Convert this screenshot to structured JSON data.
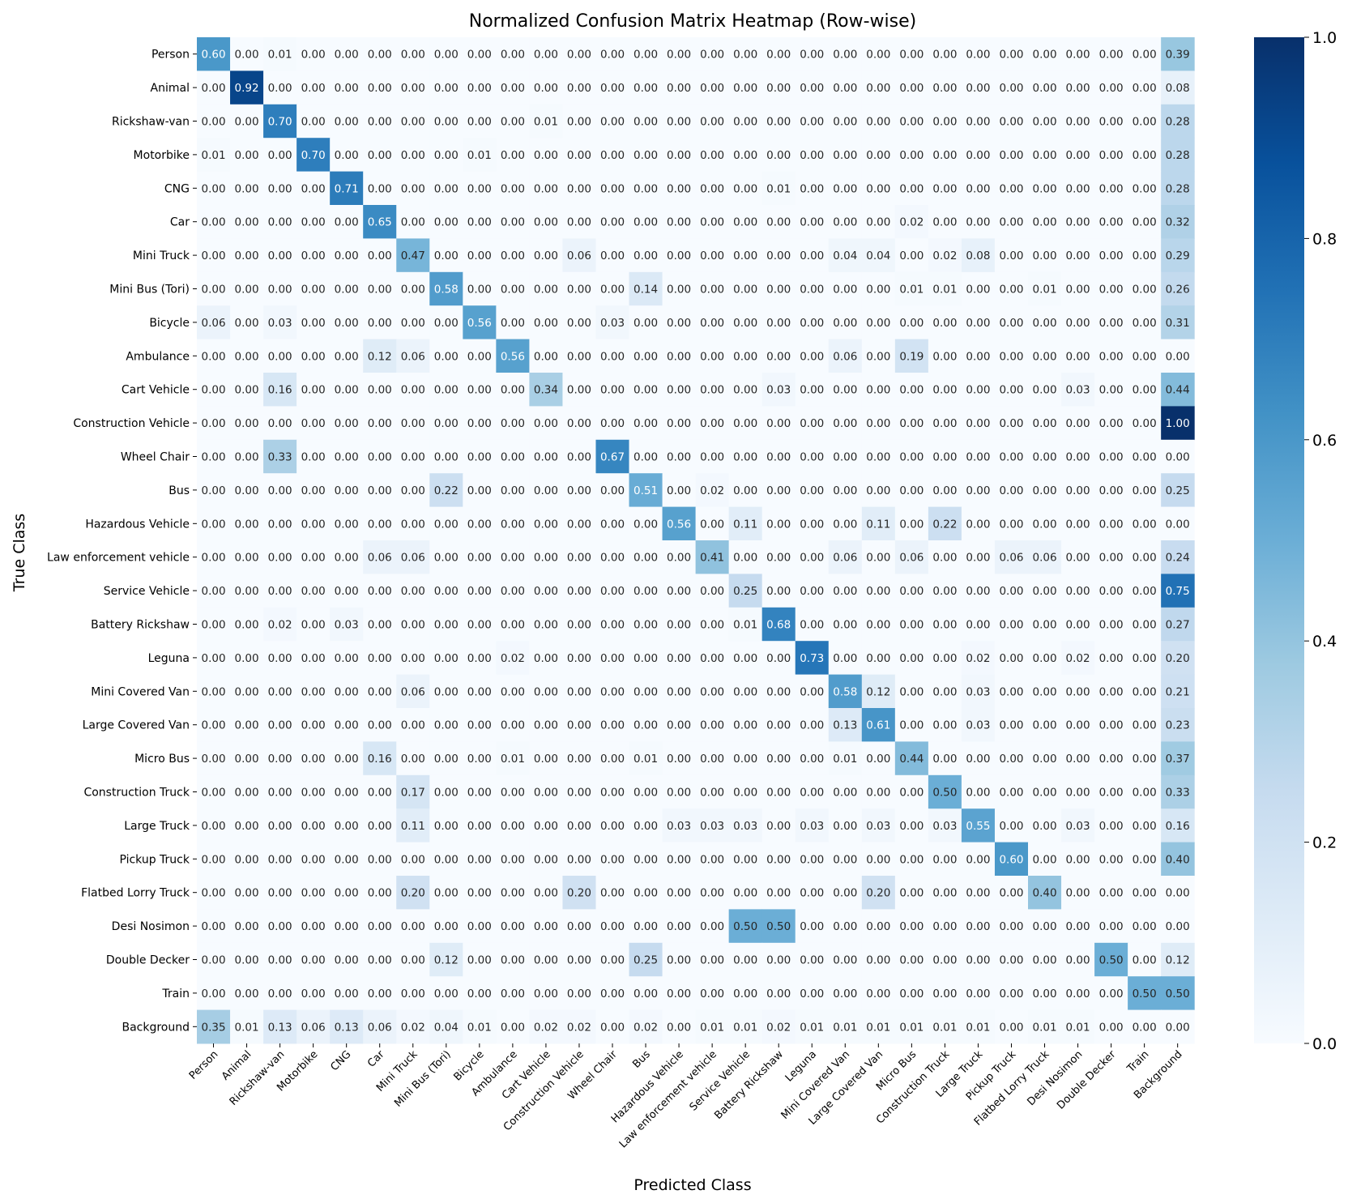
{
  "chart_data": {
    "type": "heatmap",
    "title": "Normalized Confusion Matrix Heatmap (Row-wise)",
    "xlabel": "Predicted Class",
    "ylabel": "True Class",
    "classes": [
      "Person",
      "Animal",
      "Rickshaw-van",
      "Motorbike",
      "CNG",
      "Car",
      "Mini Truck",
      "Mini Bus (Tori)",
      "Bicycle",
      "Ambulance",
      "Cart Vehicle",
      "Construction Vehicle",
      "Wheel Chair",
      "Bus",
      "Hazardous Vehicle",
      "Law enforcement vehicle",
      "Service Vehicle",
      "Battery Rickshaw",
      "Leguna",
      "Mini Covered Van",
      "Large Covered Van",
      "Micro Bus",
      "Construction Truck",
      "Large Truck",
      "Pickup Truck",
      "Flatbed Lorry Truck",
      "Desi Nosimon",
      "Double Decker",
      "Train",
      "Background"
    ],
    "colormap": "Blues",
    "color_range": [
      0,
      1
    ],
    "colorbar_ticks": [
      "0.0",
      "0.2",
      "0.4",
      "0.6",
      "0.8",
      "1.0"
    ],
    "colors": {
      "low": "#f7fbff",
      "high": "#08306b"
    },
    "matrix": [
      [
        0.6,
        0,
        0.01,
        0,
        0,
        0,
        0,
        0,
        0,
        0,
        0,
        0,
        0,
        0,
        0,
        0,
        0,
        0,
        0,
        0,
        0,
        0,
        0,
        0,
        0,
        0,
        0,
        0,
        0,
        0.39
      ],
      [
        0,
        0.92,
        0,
        0,
        0,
        0,
        0,
        0,
        0,
        0,
        0,
        0,
        0,
        0,
        0,
        0,
        0,
        0,
        0,
        0,
        0,
        0,
        0,
        0,
        0,
        0,
        0,
        0,
        0,
        0.08
      ],
      [
        0,
        0,
        0.7,
        0,
        0,
        0,
        0,
        0,
        0,
        0,
        0.01,
        0,
        0,
        0,
        0,
        0,
        0,
        0,
        0,
        0,
        0,
        0,
        0,
        0,
        0,
        0,
        0,
        0,
        0,
        0.28
      ],
      [
        0.01,
        0,
        0,
        0.7,
        0,
        0,
        0,
        0,
        0.01,
        0,
        0,
        0,
        0,
        0,
        0,
        0,
        0,
        0,
        0,
        0,
        0,
        0,
        0,
        0,
        0,
        0,
        0,
        0,
        0,
        0.28
      ],
      [
        0,
        0,
        0,
        0,
        0.71,
        0,
        0,
        0,
        0,
        0,
        0,
        0,
        0,
        0,
        0,
        0,
        0,
        0.01,
        0,
        0,
        0,
        0,
        0,
        0,
        0,
        0,
        0,
        0,
        0,
        0.28
      ],
      [
        0,
        0,
        0,
        0,
        0,
        0.65,
        0,
        0,
        0,
        0,
        0,
        0,
        0,
        0,
        0,
        0,
        0,
        0,
        0,
        0,
        0,
        0.02,
        0,
        0,
        0,
        0,
        0,
        0,
        0,
        0.32
      ],
      [
        0,
        0,
        0,
        0,
        0,
        0,
        0.47,
        0,
        0,
        0,
        0,
        0.06,
        0,
        0,
        0,
        0,
        0,
        0,
        0,
        0.04,
        0.04,
        0,
        0.02,
        0.08,
        0,
        0,
        0,
        0,
        0,
        0.29
      ],
      [
        0,
        0,
        0,
        0,
        0,
        0,
        0,
        0.58,
        0,
        0,
        0,
        0,
        0,
        0.14,
        0,
        0,
        0,
        0,
        0,
        0,
        0,
        0.01,
        0.01,
        0,
        0,
        0.01,
        0,
        0,
        0,
        0.26
      ],
      [
        0.06,
        0,
        0.03,
        0,
        0,
        0,
        0,
        0,
        0.56,
        0,
        0,
        0,
        0.03,
        0,
        0,
        0,
        0,
        0,
        0,
        0,
        0,
        0,
        0,
        0,
        0,
        0,
        0,
        0,
        0,
        0.31
      ],
      [
        0,
        0,
        0,
        0,
        0,
        0.12,
        0.06,
        0,
        0,
        0.56,
        0,
        0,
        0,
        0,
        0,
        0,
        0,
        0,
        0,
        0.06,
        0,
        0.19,
        0,
        0,
        0,
        0,
        0,
        0,
        0,
        0
      ],
      [
        0,
        0,
        0.16,
        0,
        0,
        0,
        0,
        0,
        0,
        0,
        0.34,
        0,
        0,
        0,
        0,
        0,
        0,
        0.03,
        0,
        0,
        0,
        0,
        0,
        0,
        0,
        0,
        0.03,
        0,
        0,
        0.44
      ],
      [
        0,
        0,
        0,
        0,
        0,
        0,
        0,
        0,
        0,
        0,
        0,
        0,
        0,
        0,
        0,
        0,
        0,
        0,
        0,
        0,
        0,
        0,
        0,
        0,
        0,
        0,
        0,
        0,
        0,
        1.0
      ],
      [
        0,
        0,
        0.33,
        0,
        0,
        0,
        0,
        0,
        0,
        0,
        0,
        0,
        0.67,
        0,
        0,
        0,
        0,
        0,
        0,
        0,
        0,
        0,
        0,
        0,
        0,
        0,
        0,
        0,
        0,
        0
      ],
      [
        0,
        0,
        0,
        0,
        0,
        0,
        0,
        0.22,
        0,
        0,
        0,
        0,
        0,
        0.51,
        0,
        0.02,
        0,
        0,
        0,
        0,
        0,
        0,
        0,
        0,
        0,
        0,
        0,
        0,
        0,
        0.25
      ],
      [
        0,
        0,
        0,
        0,
        0,
        0,
        0,
        0,
        0,
        0,
        0,
        0,
        0,
        0,
        0.56,
        0,
        0.11,
        0,
        0,
        0,
        0.11,
        0,
        0.22,
        0,
        0,
        0,
        0,
        0,
        0,
        0
      ],
      [
        0,
        0,
        0,
        0,
        0,
        0.06,
        0.06,
        0,
        0,
        0,
        0,
        0,
        0,
        0,
        0,
        0.41,
        0,
        0,
        0,
        0.06,
        0,
        0.06,
        0,
        0,
        0.06,
        0.06,
        0,
        0,
        0,
        0.24
      ],
      [
        0,
        0,
        0,
        0,
        0,
        0,
        0,
        0,
        0,
        0,
        0,
        0,
        0,
        0,
        0,
        0,
        0.25,
        0,
        0,
        0,
        0,
        0,
        0,
        0,
        0,
        0,
        0,
        0,
        0,
        0.75
      ],
      [
        0,
        0,
        0.02,
        0,
        0.03,
        0,
        0,
        0,
        0,
        0,
        0,
        0,
        0,
        0,
        0,
        0,
        0.01,
        0.68,
        0,
        0,
        0,
        0,
        0,
        0,
        0,
        0,
        0,
        0,
        0,
        0.27
      ],
      [
        0,
        0,
        0,
        0,
        0,
        0,
        0,
        0,
        0,
        0.02,
        0,
        0,
        0,
        0,
        0,
        0,
        0,
        0,
        0.73,
        0,
        0,
        0,
        0,
        0.02,
        0,
        0,
        0.02,
        0,
        0,
        0.2
      ],
      [
        0,
        0,
        0,
        0,
        0,
        0,
        0.06,
        0,
        0,
        0,
        0,
        0,
        0,
        0,
        0,
        0,
        0,
        0,
        0,
        0.58,
        0.12,
        0,
        0,
        0.03,
        0,
        0,
        0,
        0,
        0,
        0.21
      ],
      [
        0,
        0,
        0,
        0,
        0,
        0,
        0,
        0,
        0,
        0,
        0,
        0,
        0,
        0,
        0,
        0,
        0,
        0,
        0,
        0.13,
        0.61,
        0,
        0,
        0.03,
        0,
        0,
        0,
        0,
        0,
        0.23
      ],
      [
        0,
        0,
        0,
        0,
        0,
        0.16,
        0,
        0,
        0,
        0.01,
        0,
        0,
        0,
        0.01,
        0,
        0,
        0,
        0,
        0,
        0.01,
        0,
        0.44,
        0,
        0,
        0,
        0,
        0,
        0,
        0,
        0.37
      ],
      [
        0,
        0,
        0,
        0,
        0,
        0,
        0.17,
        0,
        0,
        0,
        0,
        0,
        0,
        0,
        0,
        0,
        0,
        0,
        0,
        0,
        0,
        0,
        0.5,
        0,
        0,
        0,
        0,
        0,
        0,
        0.33
      ],
      [
        0,
        0,
        0,
        0,
        0,
        0,
        0.11,
        0,
        0,
        0,
        0,
        0,
        0,
        0,
        0.03,
        0.03,
        0.03,
        0,
        0.03,
        0,
        0.03,
        0,
        0.03,
        0.55,
        0,
        0,
        0.03,
        0,
        0,
        0.16
      ],
      [
        0,
        0,
        0,
        0,
        0,
        0,
        0,
        0,
        0,
        0,
        0,
        0,
        0,
        0,
        0,
        0,
        0,
        0,
        0,
        0,
        0,
        0,
        0,
        0,
        0.6,
        0,
        0,
        0,
        0,
        0.4
      ],
      [
        0,
        0,
        0,
        0,
        0,
        0,
        0.2,
        0,
        0,
        0,
        0,
        0.2,
        0,
        0,
        0,
        0,
        0,
        0,
        0,
        0,
        0.2,
        0,
        0,
        0,
        0,
        0.4,
        0,
        0,
        0,
        0
      ],
      [
        0,
        0,
        0,
        0,
        0,
        0,
        0,
        0,
        0,
        0,
        0,
        0,
        0,
        0,
        0,
        0,
        0.5,
        0.5,
        0,
        0,
        0,
        0,
        0,
        0,
        0,
        0,
        0,
        0,
        0,
        0
      ],
      [
        0,
        0,
        0,
        0,
        0,
        0,
        0,
        0.12,
        0,
        0,
        0,
        0,
        0,
        0.25,
        0,
        0,
        0,
        0,
        0,
        0,
        0,
        0,
        0,
        0,
        0,
        0,
        0,
        0.5,
        0,
        0.12
      ],
      [
        0,
        0,
        0,
        0,
        0,
        0,
        0,
        0,
        0,
        0,
        0,
        0,
        0,
        0,
        0,
        0,
        0,
        0,
        0,
        0,
        0,
        0,
        0,
        0,
        0,
        0,
        0,
        0,
        0.5,
        0.5
      ],
      [
        0.35,
        0.01,
        0.13,
        0.06,
        0.13,
        0.06,
        0.02,
        0.04,
        0.01,
        0,
        0.02,
        0.02,
        0,
        0.02,
        0,
        0.01,
        0.01,
        0.02,
        0.01,
        0.01,
        0.01,
        0.01,
        0.01,
        0.01,
        0,
        0.01,
        0.01,
        0,
        0,
        0
      ]
    ]
  }
}
